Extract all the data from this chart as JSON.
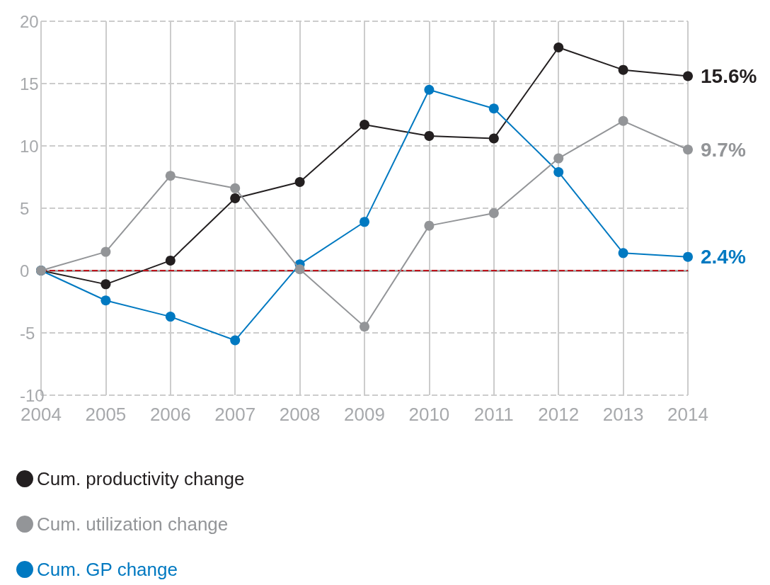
{
  "chart_data": {
    "type": "line",
    "categories": [
      "2004",
      "2005",
      "2006",
      "2007",
      "2008",
      "2009",
      "2010",
      "2011",
      "2012",
      "2013",
      "2014"
    ],
    "series": [
      {
        "name": "Cum. productivity change",
        "color": "#231f20",
        "values": [
          0,
          -1.1,
          0.8,
          5.8,
          7.1,
          11.7,
          10.8,
          10.6,
          17.9,
          16.1,
          15.6
        ]
      },
      {
        "name": "Cum. utilization change",
        "color": "#939598",
        "values": [
          0,
          1.5,
          7.6,
          6.6,
          0.1,
          -4.5,
          3.6,
          4.6,
          9.0,
          12.0,
          9.7
        ]
      },
      {
        "name": "Cum. GP change",
        "color": "#0079c1",
        "values": [
          0,
          -2.4,
          -3.7,
          -5.6,
          0.5,
          3.9,
          14.5,
          13.0,
          7.9,
          1.4,
          1.1
        ]
      }
    ],
    "ylim": [
      -10,
      20
    ],
    "yticks": [
      -10,
      -5,
      0,
      5,
      10,
      15,
      20
    ],
    "grid": true,
    "legend": "bottom",
    "marker": "circle",
    "line_style": "solid",
    "ref_lines": [
      {
        "axis": "y",
        "value": 0,
        "color": "#c0141c",
        "line_style": "dashed"
      }
    ],
    "annotations": [
      {
        "text": "15.6%",
        "x": "2014",
        "y": 15.6
      },
      {
        "text": "9.7%",
        "x": "2014",
        "y": 9.7
      },
      {
        "text": "2.4%",
        "x": "2014",
        "y": 1.1
      }
    ]
  }
}
